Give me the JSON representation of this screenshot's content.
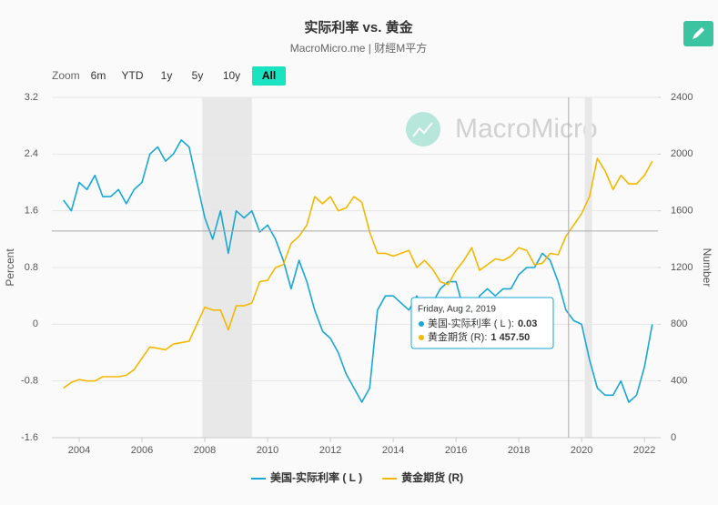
{
  "chart_data": {
    "type": "line",
    "title": "实际利率 vs. 黄金",
    "subtitle": "MacroMicro.me | 财經M平方",
    "watermark": "MacroMicro",
    "zoom": {
      "label": "Zoom",
      "buttons": [
        "6m",
        "YTD",
        "1y",
        "5y",
        "10y",
        "All"
      ],
      "active": 5
    },
    "y_label": "Percent",
    "y2_label": "Number",
    "x": [
      2003.5,
      2003.75,
      2004,
      2004.25,
      2004.5,
      2004.75,
      2005,
      2005.25,
      2005.5,
      2005.75,
      2006,
      2006.25,
      2006.5,
      2006.75,
      2007,
      2007.25,
      2007.5,
      2007.75,
      2008,
      2008.25,
      2008.5,
      2008.75,
      2009,
      2009.25,
      2009.5,
      2009.75,
      2010,
      2010.25,
      2010.5,
      2010.75,
      2011,
      2011.25,
      2011.5,
      2011.75,
      2012,
      2012.25,
      2012.5,
      2012.75,
      2013,
      2013.25,
      2013.5,
      2013.75,
      2014,
      2014.25,
      2014.5,
      2014.75,
      2015,
      2015.25,
      2015.5,
      2015.75,
      2016,
      2016.25,
      2016.5,
      2016.75,
      2017,
      2017.25,
      2017.5,
      2017.75,
      2018,
      2018.25,
      2018.5,
      2018.75,
      2019,
      2019.25,
      2019.5,
      2019.75,
      2020,
      2020.25,
      2020.5,
      2020.75,
      2021,
      2021.25,
      2021.5,
      2021.75,
      2022,
      2022.25
    ],
    "series": [
      {
        "name": "美国-实际利率 ( L )",
        "color": "#1aa7d6",
        "axis": "y",
        "values": [
          1.75,
          1.6,
          2.0,
          1.9,
          2.1,
          1.8,
          1.8,
          1.9,
          1.7,
          1.9,
          2.0,
          2.4,
          2.5,
          2.3,
          2.4,
          2.6,
          2.5,
          2.0,
          1.5,
          1.2,
          1.6,
          1.0,
          1.6,
          1.5,
          1.6,
          1.3,
          1.4,
          1.2,
          0.9,
          0.5,
          0.9,
          0.6,
          0.2,
          -0.1,
          -0.2,
          -0.4,
          -0.7,
          -0.9,
          -1.1,
          -0.9,
          0.2,
          0.4,
          0.4,
          0.3,
          0.2,
          0.4,
          0.2,
          0.3,
          0.5,
          0.6,
          0.6,
          0.2,
          0.0,
          0.4,
          0.5,
          0.4,
          0.5,
          0.5,
          0.7,
          0.8,
          0.8,
          1.0,
          0.9,
          0.6,
          0.2,
          0.05,
          0.0,
          -0.5,
          -0.9,
          -1.0,
          -1.0,
          -0.8,
          -1.1,
          -1.0,
          -0.6,
          0.0
        ]
      },
      {
        "name": "黄金期货 (R)",
        "color": "#f5b800",
        "axis": "y2",
        "values": [
          350,
          390,
          410,
          400,
          400,
          430,
          430,
          430,
          440,
          480,
          560,
          640,
          630,
          620,
          660,
          670,
          680,
          800,
          920,
          900,
          900,
          760,
          930,
          930,
          950,
          1100,
          1110,
          1200,
          1220,
          1370,
          1420,
          1500,
          1700,
          1650,
          1700,
          1600,
          1620,
          1700,
          1660,
          1450,
          1300,
          1300,
          1280,
          1300,
          1320,
          1200,
          1250,
          1190,
          1100,
          1080,
          1180,
          1250,
          1340,
          1180,
          1220,
          1260,
          1250,
          1280,
          1340,
          1320,
          1220,
          1230,
          1300,
          1290,
          1420,
          1500,
          1580,
          1700,
          1970,
          1880,
          1750,
          1850,
          1790,
          1790,
          1850,
          1950
        ]
      }
    ],
    "bands": [
      [
        2007.92,
        2009.5
      ],
      [
        2020.1,
        2020.33
      ]
    ],
    "xlim": [
      2003.13,
      2022.43
    ],
    "xticks": [
      2004,
      2006,
      2008,
      2010,
      2012,
      2014,
      2016,
      2018,
      2020,
      2022
    ],
    "ylim": [
      -1.6,
      3.2
    ],
    "yticks": [
      -1.6,
      -0.8,
      0,
      0.8,
      1.6,
      2.4,
      3.2
    ],
    "y2lim": [
      0,
      2400
    ],
    "y2ticks": [
      0,
      400,
      800,
      1200,
      1600,
      2000,
      2400
    ],
    "grid": true,
    "tooltip": {
      "date": "Friday, Aug 2, 2019",
      "x": 2019.585,
      "rows": [
        {
          "label": "美国-实际利率 ( L ):",
          "value": 0.03
        },
        {
          "label": "黄金期货 (R):",
          "value": {
            "value": 1457.5,
            "label": "1 457.50"
          }
        }
      ]
    }
  }
}
